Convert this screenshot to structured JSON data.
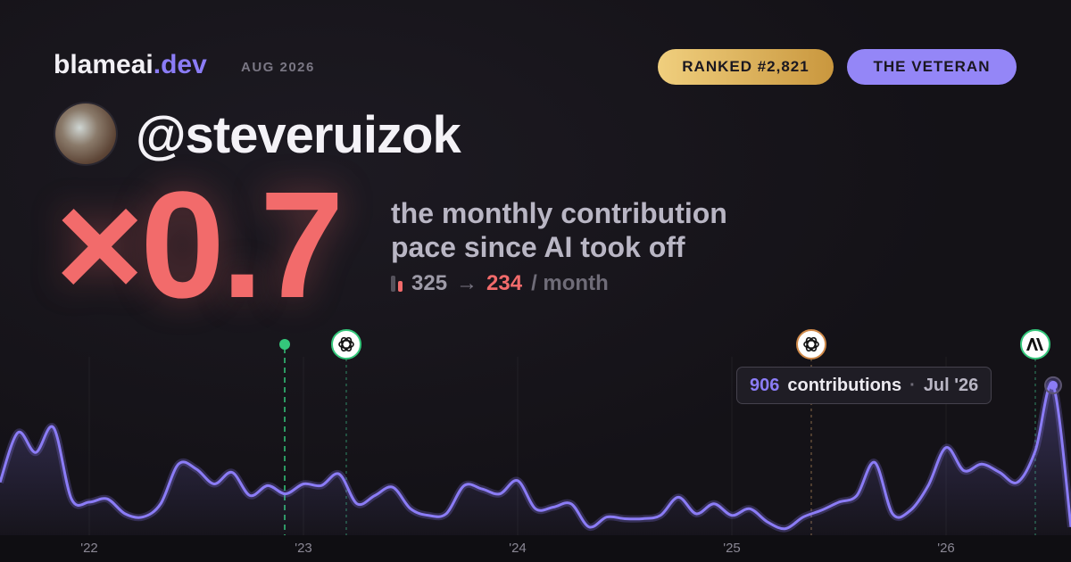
{
  "header": {
    "brand": "blameai",
    "brand_tld": ".dev",
    "period": "AUG 2026",
    "rank_badge": "RANKED #2,821",
    "title_badge": "THE VETERAN"
  },
  "profile": {
    "handle": "@steveruizok"
  },
  "hero": {
    "multiplier": "×0.7",
    "description_line1": "the monthly contribution",
    "description_line2": "pace since AI took off",
    "before": 325,
    "arrow": "→",
    "after": 234,
    "unit": "/ month"
  },
  "tooltip": {
    "label": "contributions",
    "separator": "·",
    "date": "Jul '26"
  },
  "chart_data": {
    "type": "line",
    "color": "#8b7cf6",
    "ylim": [
      0,
      1000
    ],
    "categories": [
      null,
      null,
      null,
      null,
      null,
      "'22",
      null,
      null,
      null,
      null,
      null,
      null,
      null,
      null,
      null,
      null,
      null,
      "'23",
      null,
      null,
      null,
      null,
      null,
      null,
      null,
      null,
      null,
      null,
      null,
      "'24",
      null,
      null,
      null,
      null,
      null,
      null,
      null,
      null,
      null,
      null,
      null,
      "'25",
      null,
      null,
      null,
      null,
      null,
      null,
      null,
      null,
      null,
      null,
      null,
      "'26",
      null,
      null,
      null,
      null,
      null,
      null,
      null
    ],
    "values": [
      320,
      620,
      500,
      650,
      220,
      200,
      220,
      130,
      110,
      190,
      430,
      400,
      310,
      380,
      240,
      300,
      250,
      310,
      300,
      370,
      190,
      240,
      290,
      160,
      120,
      130,
      300,
      280,
      250,
      330,
      160,
      170,
      190,
      50,
      110,
      100,
      100,
      120,
      230,
      130,
      190,
      120,
      160,
      80,
      40,
      110,
      150,
      200,
      240,
      440,
      130,
      150,
      300,
      530,
      390,
      430,
      380,
      320,
      510,
      906,
      50
    ],
    "highlight_index": 59
  }
}
